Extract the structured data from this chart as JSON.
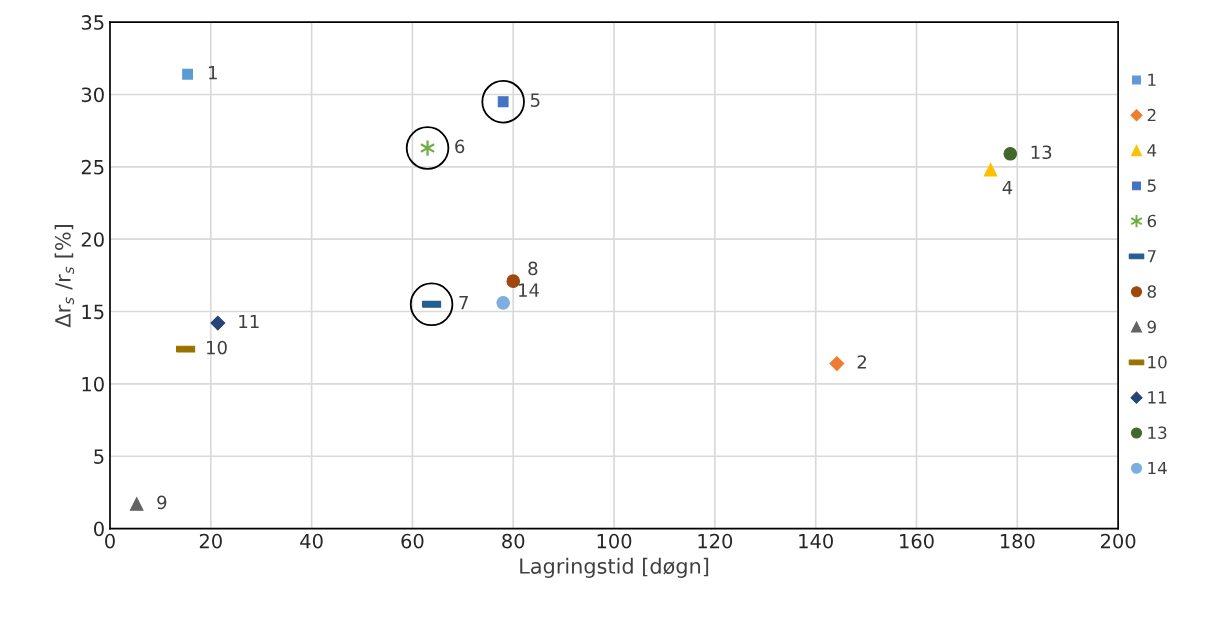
{
  "chart_data": {
    "type": "scatter",
    "xlabel": "Lagringstid [døgn]",
    "ylabel": "Δr$_{s}$ /r$_{s}$ [%]",
    "xlim": [
      0,
      200
    ],
    "xticks": [
      0,
      20,
      40,
      60,
      80,
      100,
      120,
      140,
      160,
      180,
      200
    ],
    "ylim": [
      0,
      35
    ],
    "yticks": [
      0,
      5,
      10,
      15,
      20,
      25,
      30,
      35
    ],
    "grid": true,
    "legend": "right",
    "series": [
      {
        "color": "#000000",
        "marker": "circle",
        "x": [
          78.0,
          63.0,
          63.8
        ],
        "values": [
          29.5,
          26.3,
          15.5
        ]
      },
      {
        "name": "1",
        "color": "#5b9bd5",
        "marker": "square",
        "x": [
          15.4
        ],
        "values": [
          31.4
        ]
      },
      {
        "name": "2",
        "color": "#ed7d31",
        "marker": "diamond",
        "x": [
          144.2
        ],
        "values": [
          11.4
        ]
      },
      {
        "name": "4",
        "color": "#ffc000",
        "marker": "triangle",
        "x": [
          174.7
        ],
        "values": [
          24.8
        ]
      },
      {
        "name": "5",
        "color": "#4472c4",
        "marker": "square",
        "x": [
          78.0
        ],
        "values": [
          29.5
        ]
      },
      {
        "name": "6",
        "color": "#70ad47",
        "marker": "cross",
        "x": [
          63.0
        ],
        "values": [
          26.3
        ]
      },
      {
        "name": "7",
        "color": "#255e91",
        "x": [
          63.8
        ],
        "values": [
          15.5
        ]
      },
      {
        "name": "8",
        "color": "#9e480e",
        "marker": "circle",
        "x": [
          80.0
        ],
        "values": [
          17.1
        ]
      },
      {
        "name": "9",
        "color": "#636363",
        "marker": "triangle",
        "x": [
          5.3
        ],
        "values": [
          1.7
        ]
      },
      {
        "name": "10",
        "color": "#997300",
        "x": [
          15.0
        ],
        "values": [
          12.4
        ]
      },
      {
        "name": "11",
        "color": "#264478",
        "marker": "diamond",
        "x": [
          21.4
        ],
        "values": [
          14.2
        ]
      },
      {
        "name": "13",
        "color": "#43682b",
        "marker": "circle",
        "x": [
          178.6
        ],
        "values": [
          25.9
        ]
      },
      {
        "name": "14",
        "color": "#7cafdd",
        "marker": "circle",
        "x": [
          78.0
        ],
        "values": [
          15.6
        ]
      }
    ]
  }
}
